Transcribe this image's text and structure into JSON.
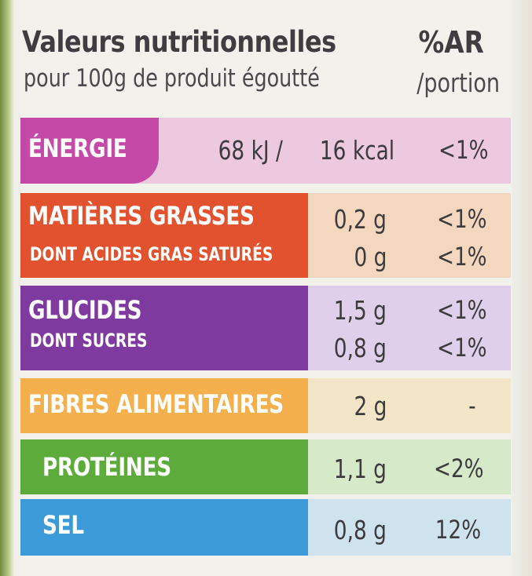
{
  "header": {
    "title": "Valeurs nutritionnelles",
    "subtitle": "pour 100g de produit égoutté",
    "ar_title": "%AR",
    "ar_subtitle": "/portion"
  },
  "rows": {
    "energy": {
      "label": "ÉNERGIE",
      "kj": "68 kJ /",
      "kcal": "16 kcal",
      "pct": "<1%",
      "color": "#c549a6"
    },
    "fat": {
      "label": "MATIÈRES GRASSES",
      "sub_label": "DONT ACIDES GRAS SATURÉS",
      "value": "0,2 g",
      "sub_value": "0 g",
      "pct": "<1%",
      "sub_pct": "<1%",
      "color": "#e2522f"
    },
    "carb": {
      "label": "GLUCIDES",
      "sub_label": "DONT SUCRES",
      "value": "1,5 g",
      "sub_value": "0,8 g",
      "pct": "<1%",
      "sub_pct": "<1%",
      "color": "#7e3a9f"
    },
    "fibre": {
      "label": "FIBRES ALIMENTAIRES",
      "value": "2 g",
      "pct": "-",
      "color": "#f3b04c"
    },
    "protein": {
      "label": "PROTÉINES",
      "value": "1,1 g",
      "pct": "<2%",
      "color": "#5cab3b"
    },
    "salt": {
      "label": "SEL",
      "value": "0,8 g",
      "pct": "12%",
      "color": "#3d9ad9"
    }
  }
}
